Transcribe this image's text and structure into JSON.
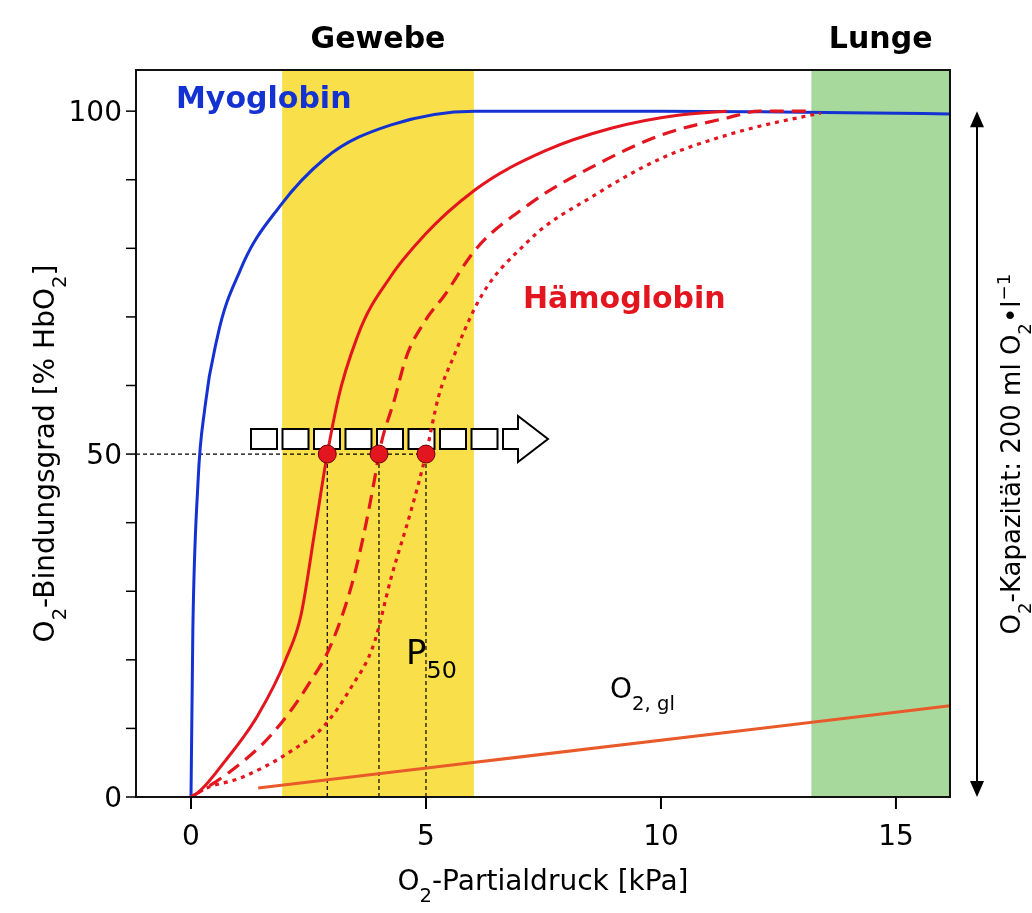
{
  "chart_data": {
    "type": "line",
    "xlabel": "O$_{2}$-Partialdruck [kPa]",
    "ylabel": "O$_{2}$-Bindungsgrad [% HbO$_{2}$]",
    "y2label": "O$_{2}$-Kapazität: 200 ml O$_{2}$•l$^{−1}$",
    "xlim": [
      -1.17,
      16.15
    ],
    "ylim": [
      0,
      106
    ],
    "xticks": [
      0,
      5,
      10,
      15
    ],
    "yticks": [
      0,
      {
        "value": 10,
        "label": null
      },
      {
        "value": 20,
        "label": null
      },
      {
        "value": 30,
        "label": null
      },
      {
        "value": 40,
        "label": null
      },
      50,
      {
        "value": 60,
        "label": null
      },
      {
        "value": 70,
        "label": null
      },
      {
        "value": 80,
        "label": null
      },
      {
        "value": 90,
        "label": null
      },
      100
    ],
    "bands": [
      {
        "axis": "x",
        "from": 1.94,
        "to": 6.02,
        "label": "Gewebe",
        "color": "#f9e04b"
      },
      {
        "axis": "x",
        "from": 13.2,
        "to": 16.15,
        "label": "Lunge",
        "color": "#a8d99c"
      }
    ],
    "ref_lines": [
      {
        "axis": "y",
        "value": 50,
        "label": null,
        "line_style": "dashed",
        "color": "#000000"
      },
      {
        "axis": "x",
        "value": 2.9,
        "label": null,
        "line_style": "dashed",
        "color": "#000000"
      },
      {
        "axis": "x",
        "value": 4,
        "label": null,
        "line_style": "dashed",
        "color": "#000000"
      },
      {
        "axis": "x",
        "value": 5,
        "label": null,
        "line_style": "dashed",
        "color": "#000000"
      }
    ],
    "series": [
      {
        "name": "Myoglobin",
        "color": "#1432d2",
        "line_style": "solid",
        "x": [
          0,
          0.04,
          0.15,
          0.3,
          0.57,
          1.06,
          1.91,
          2.85,
          4.26,
          6.04,
          10,
          16.15
        ],
        "values": [
          0,
          24.6,
          46,
          57,
          67.3,
          77,
          86.3,
          93.1,
          98,
          100,
          100,
          99.6
        ]
      },
      {
        "name": "Hämoglobin",
        "color": "#e3151e",
        "line_style": "solid",
        "x": [
          0,
          0.08,
          0.72,
          1.43,
          2.0,
          2.34,
          2.64,
          2.9,
          3.13,
          3.55,
          4.26,
          4.98,
          6.04,
          7.53,
          8.94,
          10.36,
          11.4
        ],
        "values": [
          0,
          0.3,
          5.2,
          12,
          19.8,
          26.5,
          39,
          50,
          58,
          67.3,
          76,
          82,
          88.5,
          94.2,
          97.5,
          99.4,
          100
        ]
      },
      {
        "name": null,
        "color": "#e3151e",
        "line_style": "dashed",
        "x": [
          0,
          0.85,
          1.7,
          2.49,
          2.98,
          3.55,
          3.91,
          4.0,
          4.34,
          4.55,
          4.98,
          5.4,
          5.96,
          7.17,
          8.6,
          10,
          11.4,
          12.1,
          13.2
        ],
        "values": [
          0,
          3.8,
          9,
          16.3,
          22.2,
          34.4,
          46.5,
          50,
          58.2,
          63.5,
          69.4,
          73.2,
          79,
          86.3,
          92.1,
          96.5,
          99,
          100,
          100
        ]
      },
      {
        "name": null,
        "color": "#e3151e",
        "line_style": "dotted",
        "x": [
          0,
          0.21,
          1.06,
          2.13,
          2.85,
          3.4,
          3.91,
          4.26,
          4.68,
          5.0,
          5.26,
          5.6,
          6.04,
          7.17,
          8.6,
          10,
          11.4,
          13.4
        ],
        "values": [
          0,
          0.9,
          2.8,
          6.7,
          10.5,
          15.9,
          22.7,
          32,
          41.7,
          50,
          58.2,
          64.4,
          71.3,
          81,
          87.8,
          93.1,
          96.5,
          99.7
        ]
      },
      {
        "name": "O$_{2, gl}$",
        "color": "#e85a2a",
        "line_style": "solid",
        "x": [
          1.43,
          16.15
        ],
        "values": [
          1.3,
          13.3
        ]
      },
      {
        "name": null,
        "type": "scatter",
        "color": "#e3151e",
        "marker": "circle",
        "x": [
          2.9,
          4,
          5
        ],
        "values": [
          50,
          50,
          50
        ]
      }
    ],
    "annotations": [
      "P$_{50}$"
    ]
  }
}
